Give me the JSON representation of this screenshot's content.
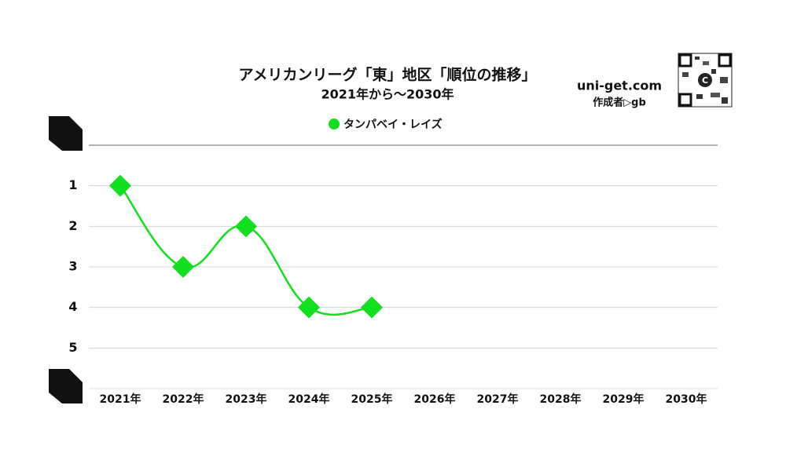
{
  "chart_data": {
    "type": "line",
    "title": "アメリカンリーグ「東」地区「順位の推移」",
    "subtitle": "2021年から～2030年",
    "source": "uni-get.com",
    "author": "作成者▷gb",
    "categories": [
      "2021年",
      "2022年",
      "2023年",
      "2024年",
      "2025年",
      "2026年",
      "2027年",
      "2028年",
      "2029年",
      "2030年"
    ],
    "series": [
      {
        "name": "タンパベイ・レイズ",
        "color": "#11e01f",
        "values": [
          1,
          3,
          2,
          4,
          4,
          null,
          null,
          null,
          null,
          null
        ]
      }
    ],
    "ylim": [
      0,
      6
    ],
    "yticks": [
      1,
      2,
      3,
      4,
      5
    ],
    "y_inverted": true,
    "grid": true,
    "legend": "top"
  }
}
